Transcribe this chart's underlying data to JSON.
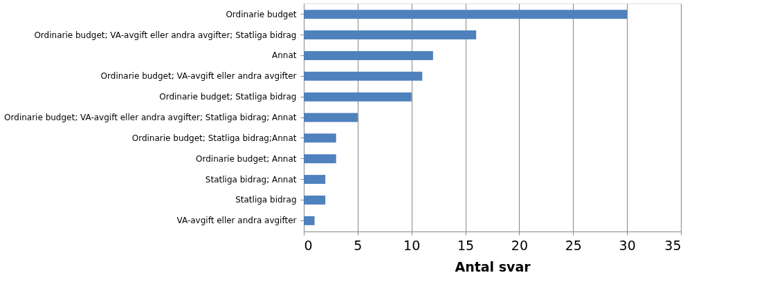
{
  "chart_data": {
    "type": "bar",
    "orientation": "horizontal",
    "xlabel": "Antal svar",
    "categories": [
      "Ordinarie budget",
      "Ordinarie budget; VA-avgift eller andra avgifter; Statliga bidrag",
      "Annat",
      "Ordinarie budget; VA-avgift eller andra avgifter",
      "Ordinarie budget; Statliga bidrag",
      "Ordinarie budget; VA-avgift eller andra avgifter; Statliga bidrag; Annat",
      "Ordinarie budget; Statliga bidrag;Annat",
      "Ordinarie budget; Annat",
      "Statliga bidrag; Annat",
      "Statliga bidrag",
      "VA-avgift eller andra avgifter"
    ],
    "values": [
      30,
      16,
      12,
      11,
      10,
      5,
      3,
      3,
      2,
      2,
      1
    ],
    "color": "#4f81bd",
    "xlim": [
      0,
      35
    ],
    "xticks": [
      0,
      5,
      10,
      15,
      20,
      25,
      30,
      35
    ],
    "grid": "x"
  }
}
